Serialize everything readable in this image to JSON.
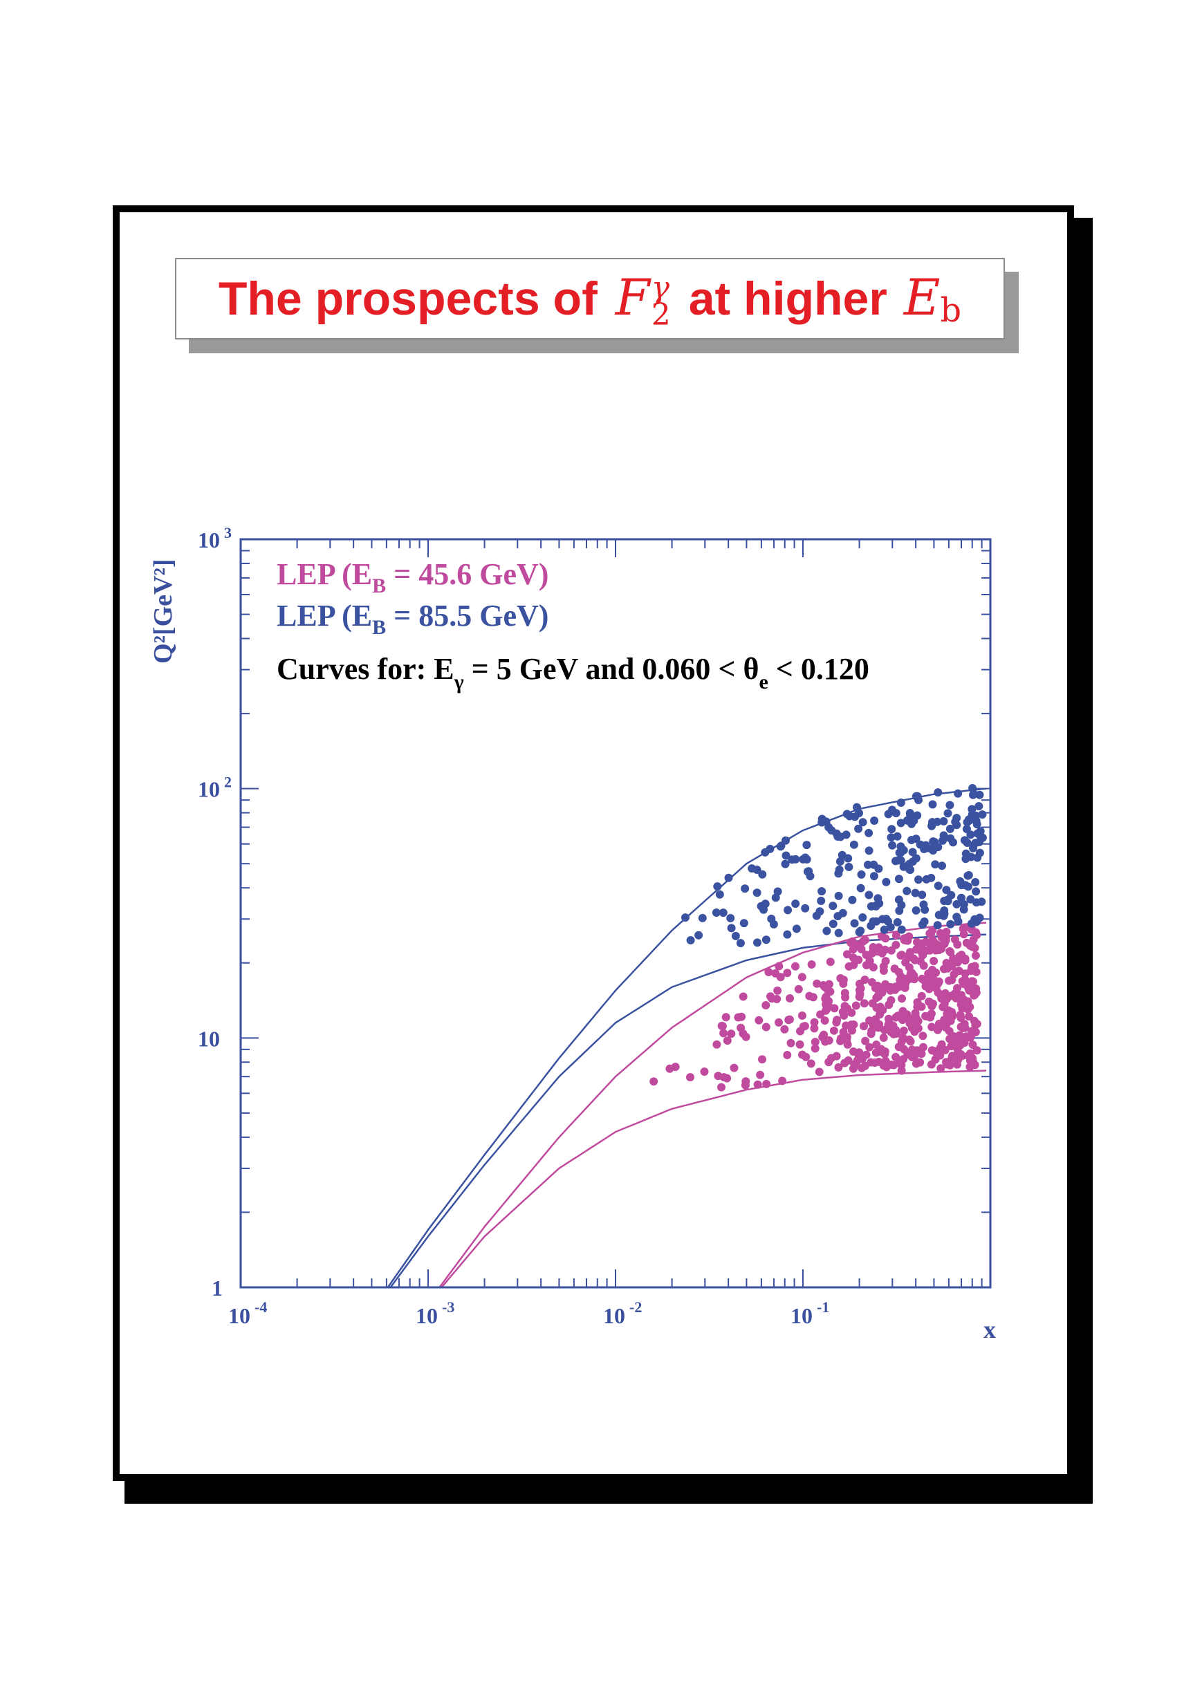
{
  "slide": {
    "title": {
      "prefix": "The prospects of",
      "symbol": "F",
      "symbol_sub": "2",
      "symbol_sup": "γ",
      "middle": "at higher",
      "energy_symbol": "E",
      "energy_sub": "b"
    }
  },
  "colors": {
    "title": "#e31e24",
    "axis": "#3a4f9e",
    "lep_45": "#c04b9e",
    "lep_85": "#3a52a0",
    "text": "#000000"
  },
  "chart_data": {
    "type": "scatter",
    "xscale": "log",
    "yscale": "log",
    "xlim": [
      0.0001,
      1
    ],
    "ylim": [
      1,
      1000
    ],
    "xlabel": "x",
    "ylabel": "Q²[GeV²]",
    "xticks": [
      {
        "base": "10",
        "exp": "-4",
        "value": 0.0001
      },
      {
        "base": "10",
        "exp": "-3",
        "value": 0.001
      },
      {
        "base": "10",
        "exp": "-2",
        "value": 0.01
      },
      {
        "base": "10",
        "exp": "-1",
        "value": 0.1
      }
    ],
    "yticks": [
      {
        "base": "1",
        "exp": "",
        "value": 1
      },
      {
        "base": "10",
        "exp": "",
        "value": 10
      },
      {
        "base": "10",
        "exp": "2",
        "value": 100
      },
      {
        "base": "10",
        "exp": "3",
        "value": 1000
      }
    ],
    "legend": {
      "placement": "top-left",
      "entries": [
        {
          "pre": "LEP (E",
          "sub": "B",
          "post": " = 45.6 GeV)",
          "color": "#c04b9e"
        },
        {
          "pre": "LEP (E",
          "sub": "B",
          "post": " = 85.5 GeV)",
          "color": "#3a52a0"
        }
      ],
      "note": {
        "pre": "Curves for: E",
        "sub1": "γ",
        "mid": " = 5 GeV and 0.060 < θ",
        "sub2": "e",
        "post": " < 0.120"
      }
    },
    "curves": [
      {
        "series": "LEP (EB = 85.5 GeV)",
        "color": "#3a52a0",
        "points": [
          [
            0.00061,
            1.0
          ],
          [
            0.001,
            1.7
          ],
          [
            0.002,
            3.4
          ],
          [
            0.005,
            8.3
          ],
          [
            0.01,
            15.5
          ],
          [
            0.02,
            27
          ],
          [
            0.05,
            50
          ],
          [
            0.1,
            68
          ],
          [
            0.2,
            83
          ],
          [
            0.5,
            95
          ],
          [
            0.95,
            100
          ]
        ]
      },
      {
        "series": "LEP (EB = 85.5 GeV)",
        "color": "#3a52a0",
        "points": [
          [
            0.00063,
            1.0
          ],
          [
            0.001,
            1.6
          ],
          [
            0.002,
            3.1
          ],
          [
            0.005,
            7.0
          ],
          [
            0.01,
            11.5
          ],
          [
            0.02,
            16
          ],
          [
            0.05,
            20.5
          ],
          [
            0.1,
            23
          ],
          [
            0.2,
            24.5
          ],
          [
            0.5,
            25.5
          ],
          [
            0.95,
            26
          ]
        ]
      },
      {
        "series": "LEP (EB = 45.6 GeV)",
        "color": "#c04b9e",
        "points": [
          [
            0.00115,
            1.0
          ],
          [
            0.002,
            1.75
          ],
          [
            0.005,
            4.0
          ],
          [
            0.01,
            7.0
          ],
          [
            0.02,
            11
          ],
          [
            0.05,
            17.5
          ],
          [
            0.1,
            22
          ],
          [
            0.2,
            25.5
          ],
          [
            0.5,
            28
          ],
          [
            0.95,
            29
          ]
        ]
      },
      {
        "series": "LEP (EB = 45.6 GeV)",
        "color": "#c04b9e",
        "points": [
          [
            0.00118,
            1.0
          ],
          [
            0.002,
            1.6
          ],
          [
            0.005,
            3.0
          ],
          [
            0.01,
            4.2
          ],
          [
            0.02,
            5.2
          ],
          [
            0.05,
            6.2
          ],
          [
            0.1,
            6.8
          ],
          [
            0.2,
            7.1
          ],
          [
            0.5,
            7.3
          ],
          [
            0.95,
            7.4
          ]
        ]
      }
    ],
    "scatter_generation": {
      "note": "dense event samples reproduced procedurally",
      "series": [
        {
          "name": "LEP (EB = 45.6 GeV)",
          "color": "#c04b9e",
          "count": 520,
          "x_range": [
            0.03,
            0.85
          ],
          "seed": 11
        },
        {
          "name": "LEP (EB = 85.5 GeV)",
          "color": "#3a52a0",
          "count": 260,
          "x_range": [
            0.012,
            0.95
          ],
          "seed": 29
        }
      ]
    }
  }
}
